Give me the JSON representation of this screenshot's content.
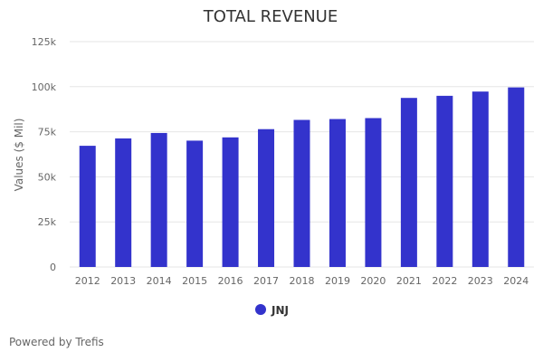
{
  "credit": "Powered by Trefis",
  "chart_data": {
    "type": "bar",
    "title": "TOTAL REVENUE",
    "xlabel": "",
    "ylabel": "Values ($ Mil)",
    "categories": [
      "2012",
      "2013",
      "2014",
      "2015",
      "2016",
      "2017",
      "2018",
      "2019",
      "2020",
      "2021",
      "2022",
      "2023",
      "2024"
    ],
    "series": [
      {
        "name": "JNJ",
        "values": [
          67224,
          71312,
          74331,
          70074,
          71890,
          76450,
          81581,
          82059,
          82584,
          93775,
          94943,
          97300,
          99600
        ]
      }
    ],
    "ylim": [
      0,
      125000
    ],
    "yticks": [
      {
        "value": 0,
        "label": "0"
      },
      {
        "value": 25000,
        "label": "25k"
      },
      {
        "value": 50000,
        "label": "50k"
      },
      {
        "value": 75000,
        "label": "75k"
      },
      {
        "value": 100000,
        "label": "100k"
      },
      {
        "value": 125000,
        "label": "125k"
      }
    ],
    "grid": true,
    "legend": "bottom-center",
    "colors": {
      "bar": "#3333cc",
      "grid": "#e6e6e6"
    }
  }
}
